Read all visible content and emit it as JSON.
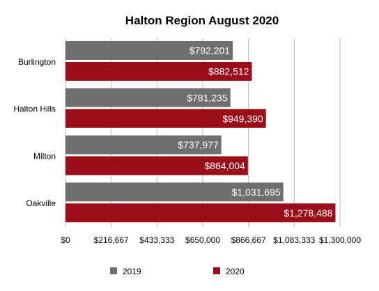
{
  "chart_data": {
    "type": "bar",
    "orientation": "horizontal",
    "title": "Halton Region August 2020",
    "categories": [
      "Burlington",
      "Halton Hills",
      "Milton",
      "Oakville"
    ],
    "series": [
      {
        "name": "2019",
        "values": [
          792201,
          781235,
          737977,
          1031695
        ],
        "labels": [
          "$792,201",
          "$781,235",
          "$737,977",
          "$1,031,695"
        ],
        "color": "#6d706f"
      },
      {
        "name": "2020",
        "values": [
          882512,
          949390,
          864004,
          1278488
        ],
        "labels": [
          "$882,512",
          "$949,390",
          "$864,004",
          "$1,278,488"
        ],
        "color": "#9b0d18"
      }
    ],
    "xlim": [
      0,
      1300000
    ],
    "xticks": [
      0,
      216667,
      433333,
      650000,
      866667,
      1083333,
      1300000
    ],
    "xtick_labels": [
      "$0",
      "$216,667",
      "$433,333",
      "$650,000",
      "$866,667",
      "$1,083,333",
      "$1,300,000"
    ],
    "grid": true,
    "legend_position": "bottom",
    "gridline_color": "#b7b7b7"
  }
}
